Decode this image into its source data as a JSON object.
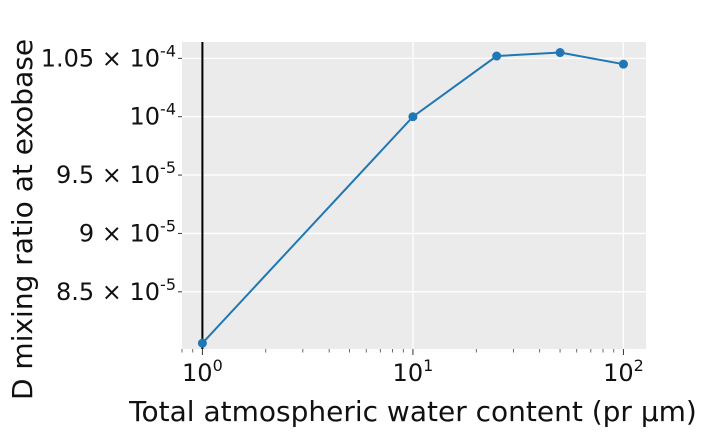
{
  "chart_data": {
    "type": "line",
    "xlabel": "Total atmospheric water content (pr μm)",
    "ylabel": "D mixing ratio at exobase",
    "x_scale": "log",
    "xlim": [
      0.8,
      128
    ],
    "ylim": [
      8.01e-05,
      0.0001064
    ],
    "grid": true,
    "background_color": "#ebebeb",
    "series_color": "#1f77b4",
    "vline_x": 1,
    "x_ticks": [
      {
        "value": 1,
        "base": "10",
        "exp": "0"
      },
      {
        "value": 10,
        "base": "10",
        "exp": "1"
      },
      {
        "value": 100,
        "base": "10",
        "exp": "2"
      }
    ],
    "y_ticks": [
      {
        "value": 8.5e-05,
        "mant": "8.5 × 10",
        "exp": "-5"
      },
      {
        "value": 9e-05,
        "mant": "9 × 10",
        "exp": "-5"
      },
      {
        "value": 9.5e-05,
        "mant": "9.5 × 10",
        "exp": "-5"
      },
      {
        "value": 0.0001,
        "mant": "10",
        "exp": "-4"
      },
      {
        "value": 0.000105,
        "mant": "1.05 × 10",
        "exp": "-4"
      }
    ],
    "series": [
      {
        "x": [
          1,
          10,
          25,
          50,
          100
        ],
        "y": [
          8.06e-05,
          0.0001,
          0.0001052,
          0.0001055,
          0.0001045
        ]
      }
    ]
  }
}
